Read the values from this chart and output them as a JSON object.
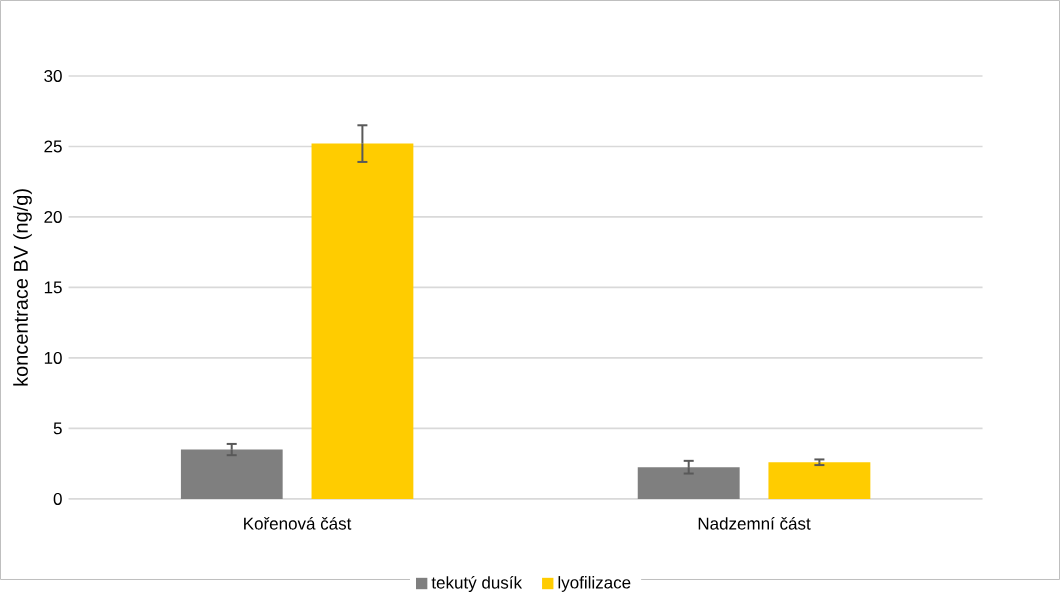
{
  "chart_data": {
    "type": "bar",
    "ylabel": "koncentrace BV (ng/g)",
    "categories": [
      "Kořenová část",
      "Nadzemní část"
    ],
    "series": [
      {
        "name": "tekutý dusík",
        "color": "#7f7f7f",
        "values": [
          3.5,
          2.25
        ],
        "errors": [
          0.4,
          0.45
        ]
      },
      {
        "name": "lyofilizace",
        "color": "#ffcc00",
        "values": [
          25.2,
          2.6
        ],
        "errors": [
          1.3,
          0.2
        ]
      }
    ],
    "ylim": [
      0,
      30
    ],
    "yticks": [
      0,
      5,
      10,
      15,
      20,
      25,
      30
    ],
    "grid": "y",
    "legend": "bottom"
  }
}
